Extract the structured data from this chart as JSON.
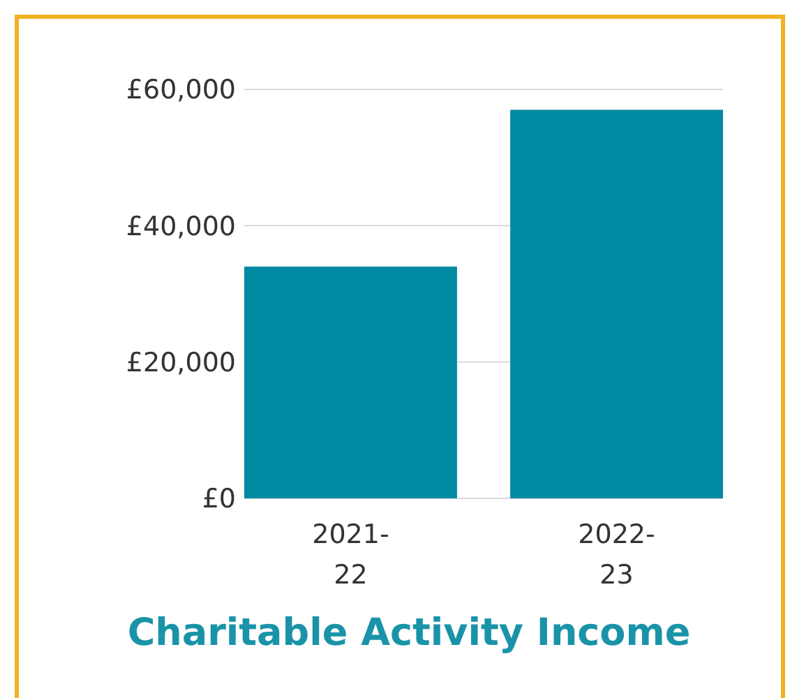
{
  "chart_data": {
    "type": "bar",
    "title": "Charitable Activity Income",
    "categories": [
      "2021-22",
      "2022-23"
    ],
    "values": [
      34000,
      57000
    ],
    "color": "#008ba3",
    "ylim": [
      0,
      60000
    ],
    "yticks": [
      {
        "value": 0,
        "label": "£0"
      },
      {
        "value": 20000,
        "label": "£20,000"
      },
      {
        "value": 40000,
        "label": "£40,000"
      },
      {
        "value": 60000,
        "label": "£60,000"
      }
    ],
    "grid": "y"
  }
}
